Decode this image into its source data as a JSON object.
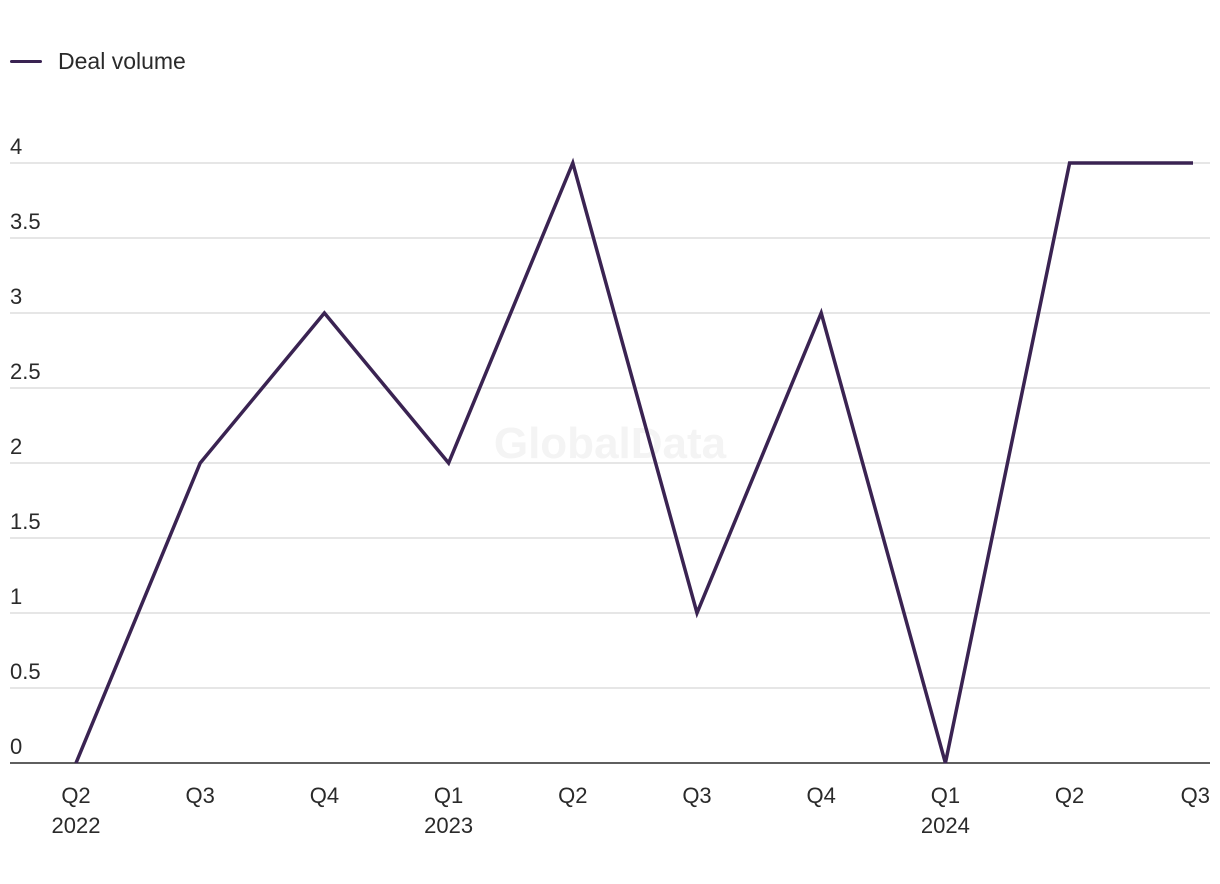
{
  "chart_data": {
    "type": "line",
    "categories": [
      "Q2 2022",
      "Q3 2022",
      "Q4 2022",
      "Q1 2023",
      "Q2 2023",
      "Q3 2023",
      "Q4 2023",
      "Q1 2024",
      "Q2 2024",
      "Q3 2024"
    ],
    "tick_labels": [
      {
        "top": "Q2",
        "bottom": "2022"
      },
      {
        "top": "Q3",
        "bottom": ""
      },
      {
        "top": "Q4",
        "bottom": ""
      },
      {
        "top": "Q1",
        "bottom": "2023"
      },
      {
        "top": "Q2",
        "bottom": ""
      },
      {
        "top": "Q3",
        "bottom": ""
      },
      {
        "top": "Q4",
        "bottom": ""
      },
      {
        "top": "Q1",
        "bottom": "2024"
      },
      {
        "top": "Q2",
        "bottom": ""
      },
      {
        "top": "Q3",
        "bottom": ""
      }
    ],
    "series": [
      {
        "name": "Deal volume",
        "values": [
          0,
          2,
          3,
          2,
          4,
          1,
          3,
          0,
          4,
          4
        ],
        "color": "#3a2352"
      }
    ],
    "ylim": [
      0,
      4
    ],
    "yticks": [
      "0",
      "0.5",
      "1",
      "1.5",
      "2",
      "2.5",
      "3",
      "3.5",
      "4"
    ],
    "grid": true,
    "legend_position": "top-left",
    "watermark": "GlobalData"
  }
}
